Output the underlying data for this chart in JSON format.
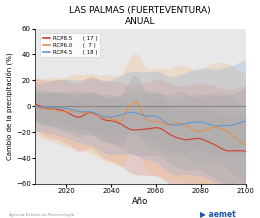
{
  "title": "LAS PALMAS (FUERTEVENTURA)",
  "subtitle": "ANUAL",
  "xlabel": "Año",
  "ylabel": "Cambio de la precipitación (%)",
  "xlim": [
    2006,
    2100
  ],
  "ylim": [
    -60,
    60
  ],
  "yticks": [
    -60,
    -40,
    -20,
    0,
    20,
    40,
    60
  ],
  "xticks": [
    2020,
    2040,
    2060,
    2080,
    2100
  ],
  "legend_entries": [
    {
      "label": "RCP8.5",
      "color": "#cc4433",
      "n": "( 17 )"
    },
    {
      "label": "RCP6.0",
      "color": "#e09050",
      "n": "(  7 )"
    },
    {
      "label": "RCP4.5",
      "color": "#6699cc",
      "n": "( 18 )"
    }
  ],
  "envelope85_color": "#dd7766",
  "envelope60_color": "#f0b87a",
  "envelope45_color": "#88aadd",
  "inner_color": "#aaaaaa",
  "bg_color": "#e8e8e8",
  "zero_line_color": "#888888",
  "footer_left": "Agencia Estatal de Meteorología",
  "footer_right": "aemet"
}
